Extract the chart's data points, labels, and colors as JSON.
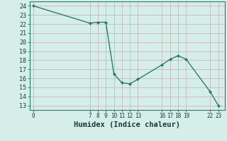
{
  "x": [
    0,
    7,
    8,
    9,
    10,
    11,
    12,
    13,
    16,
    17,
    18,
    19,
    22,
    23
  ],
  "y": [
    24.0,
    22.1,
    22.2,
    22.2,
    16.5,
    15.5,
    15.4,
    15.9,
    17.5,
    18.1,
    18.5,
    18.1,
    14.5,
    13.0
  ],
  "line_color": "#2d7a6a",
  "marker_color": "#2d7a6a",
  "bg_color": "#d6eeea",
  "grid_color_h": "#c8b8b8",
  "grid_color_v": "#c8b8b8",
  "xlabel": "Humidex (Indice chaleur)",
  "xlabel_fontsize": 7.5,
  "ylabel_ticks": [
    13,
    14,
    15,
    16,
    17,
    18,
    19,
    20,
    21,
    22,
    23,
    24
  ],
  "xticks": [
    0,
    7,
    8,
    9,
    10,
    11,
    12,
    13,
    16,
    17,
    18,
    19,
    22,
    23
  ],
  "ylim": [
    12.5,
    24.5
  ],
  "xlim": [
    -0.5,
    23.8
  ]
}
